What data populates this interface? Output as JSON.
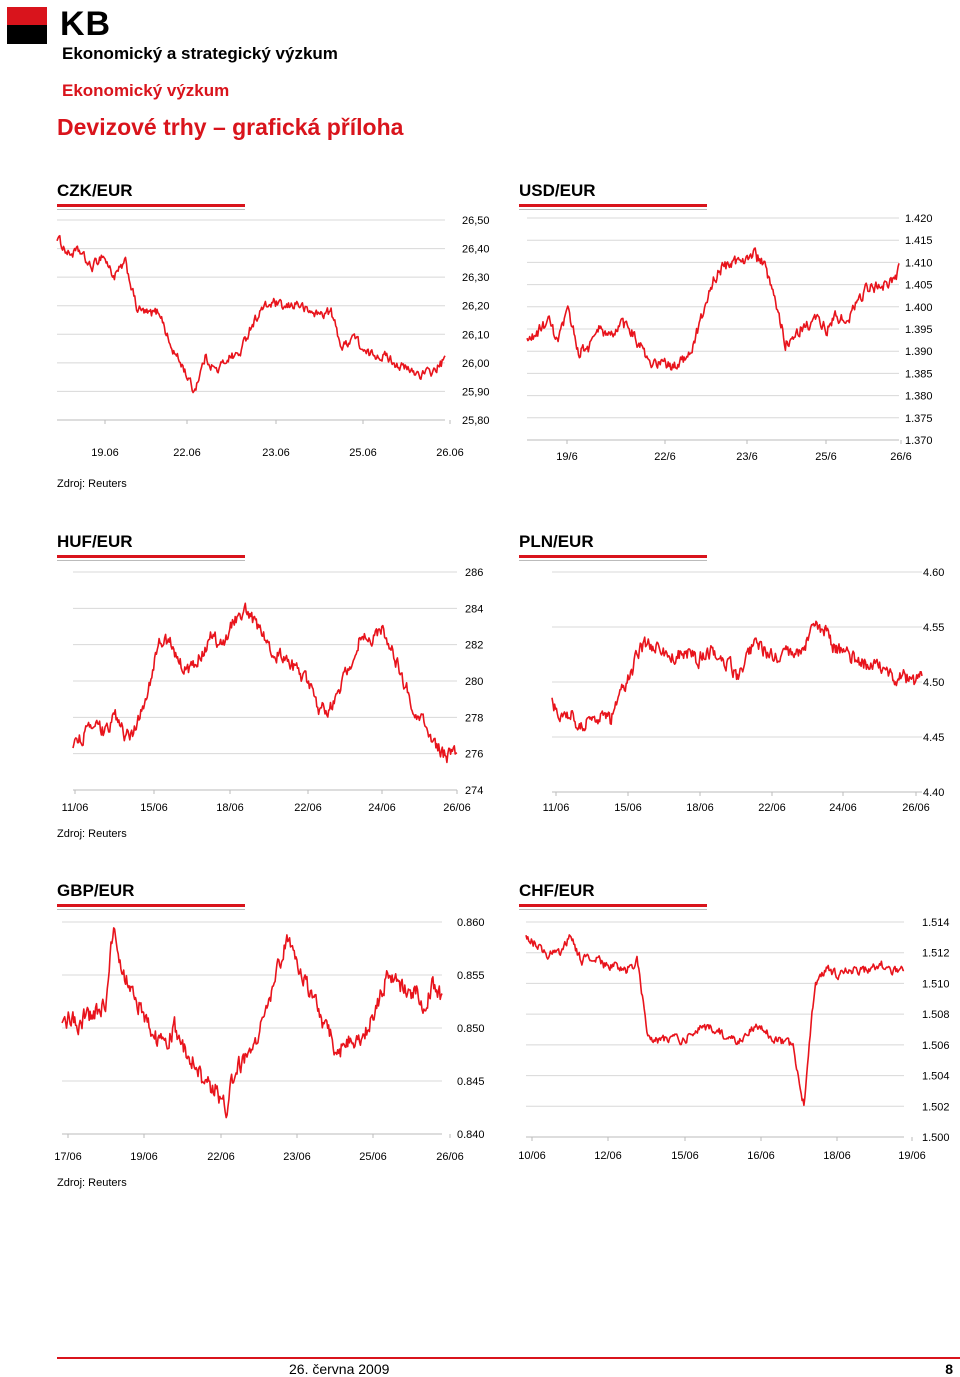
{
  "header": {
    "logo_text": "KB",
    "department": "Ekonomický a strategický výzkum",
    "subtitle": "Ekonomický výzkum",
    "title": "Devizové trhy – grafická příloha"
  },
  "colors": {
    "accent": "#d9141c",
    "line": "#e8141c",
    "grid": "#d8d8d8"
  },
  "source_label": "Zdroj: Reuters",
  "footer": {
    "date": "26. června 2009",
    "page": "8"
  },
  "chart_data": [
    {
      "id": "czk",
      "type": "line",
      "title": "CZK/EUR",
      "ylim": [
        25.8,
        26.5
      ],
      "yticks": [
        "26,50",
        "26,40",
        "26,30",
        "26,20",
        "26,10",
        "26,00",
        "25,90",
        "25,80"
      ],
      "xticks": [
        "19.06",
        "22.06",
        "23.06",
        "25.06",
        "26.06"
      ],
      "anchors": [
        26.44,
        26.38,
        26.39,
        26.33,
        26.38,
        26.3,
        26.35,
        26.19,
        26.17,
        26.18,
        26.05,
        25.99,
        25.9,
        26.02,
        25.97,
        26.02,
        26.03,
        26.13,
        26.19,
        26.21,
        26.19,
        26.21,
        26.18,
        26.17,
        26.18,
        26.05,
        26.1,
        26.03,
        26.03,
        26.02,
        25.99,
        25.97,
        25.96,
        25.97,
        26.01
      ],
      "noise": 0.015
    },
    {
      "id": "usd",
      "type": "line",
      "title": "USD/EUR",
      "ylim": [
        1.37,
        1.42
      ],
      "yticks": [
        "1.420",
        "1.415",
        "1.410",
        "1.405",
        "1.400",
        "1.395",
        "1.390",
        "1.385",
        "1.380",
        "1.375",
        "1.370"
      ],
      "xticks": [
        "19/6",
        "22/6",
        "23/6",
        "25/6",
        "26/6"
      ],
      "anchors": [
        1.392,
        1.394,
        1.397,
        1.392,
        1.399,
        1.39,
        1.391,
        1.395,
        1.393,
        1.396,
        1.395,
        1.391,
        1.386,
        1.388,
        1.386,
        1.388,
        1.391,
        1.398,
        1.406,
        1.409,
        1.41,
        1.411,
        1.412,
        1.409,
        1.401,
        1.392,
        1.394,
        1.396,
        1.397,
        1.395,
        1.398,
        1.396,
        1.402,
        1.404,
        1.405,
        1.405,
        1.408
      ],
      "noise": 0.0012
    },
    {
      "id": "huf",
      "type": "line",
      "title": "HUF/EUR",
      "ylim": [
        274,
        286
      ],
      "yticks": [
        "286",
        "284",
        "282",
        "280",
        "278",
        "276",
        "274"
      ],
      "xticks": [
        "11/06",
        "15/06",
        "18/06",
        "22/06",
        "24/06",
        "26/06"
      ],
      "anchors": [
        276.5,
        277.0,
        277.5,
        277.2,
        278.0,
        276.9,
        277.5,
        279.5,
        282.0,
        282.3,
        281.0,
        280.5,
        281.5,
        282.5,
        282.0,
        283.3,
        284.0,
        283.2,
        282.5,
        281.5,
        281.2,
        280.5,
        280.0,
        278.5,
        278.5,
        279.5,
        281.0,
        282.5,
        282.0,
        283.0,
        281.5,
        280.0,
        278.5,
        277.5,
        276.5,
        275.8,
        276.2
      ],
      "noise": 0.35
    },
    {
      "id": "pln",
      "type": "line",
      "title": "PLN/EUR",
      "ylim": [
        4.4,
        4.6
      ],
      "yticks": [
        "4.60",
        "4.55",
        "4.50",
        "4.45",
        "4.40"
      ],
      "xticks": [
        "11/06",
        "15/06",
        "18/06",
        "22/06",
        "24/06",
        "26/06"
      ],
      "anchors": [
        4.48,
        4.472,
        4.47,
        4.46,
        4.465,
        4.47,
        4.465,
        4.487,
        4.505,
        4.53,
        4.535,
        4.53,
        4.522,
        4.525,
        4.525,
        4.52,
        4.53,
        4.525,
        4.518,
        4.505,
        4.525,
        4.535,
        4.528,
        4.52,
        4.525,
        4.522,
        4.535,
        4.55,
        4.548,
        4.53,
        4.525,
        4.52,
        4.518,
        4.515,
        4.51,
        4.505,
        4.505,
        4.5,
        4.505
      ],
      "noise": 0.006
    },
    {
      "id": "gbp",
      "type": "line",
      "title": "GBP/EUR",
      "ylim": [
        0.84,
        0.86
      ],
      "yticks": [
        "0.860",
        "0.855",
        "0.850",
        "0.845",
        "0.840"
      ],
      "xticks": [
        "17/06",
        "19/06",
        "22/06",
        "23/06",
        "25/06",
        "26/06"
      ],
      "anchors": [
        0.8505,
        0.851,
        0.8505,
        0.8512,
        0.8515,
        0.852,
        0.8595,
        0.8555,
        0.8535,
        0.852,
        0.8505,
        0.849,
        0.848,
        0.85,
        0.8485,
        0.847,
        0.8455,
        0.8445,
        0.844,
        0.8425,
        0.846,
        0.847,
        0.848,
        0.85,
        0.8525,
        0.8555,
        0.8585,
        0.856,
        0.855,
        0.853,
        0.851,
        0.8495,
        0.8475,
        0.849,
        0.848,
        0.849,
        0.851,
        0.8535,
        0.8555,
        0.854,
        0.853,
        0.8535,
        0.852,
        0.854,
        0.853
      ],
      "noise": 0.0008
    },
    {
      "id": "chf",
      "type": "line",
      "title": "CHF/EUR",
      "ylim": [
        1.5,
        1.514
      ],
      "yticks": [
        "1.514",
        "1.512",
        "1.510",
        "1.508",
        "1.506",
        "1.504",
        "1.502",
        "1.500"
      ],
      "xticks": [
        "10/06",
        "12/06",
        "15/06",
        "16/06",
        "18/06",
        "19/06"
      ],
      "anchors": [
        1.513,
        1.5125,
        1.5118,
        1.512,
        1.513,
        1.5115,
        1.5118,
        1.5112,
        1.5112,
        1.5108,
        1.5115,
        1.5065,
        1.5062,
        1.5065,
        1.5062,
        1.5068,
        1.5072,
        1.507,
        1.5066,
        1.5062,
        1.5068,
        1.5072,
        1.5066,
        1.5062,
        1.506,
        1.502,
        1.51,
        1.511,
        1.5105,
        1.511,
        1.5108,
        1.511,
        1.5112,
        1.5108,
        1.5108
      ],
      "noise": 0.00025
    }
  ]
}
